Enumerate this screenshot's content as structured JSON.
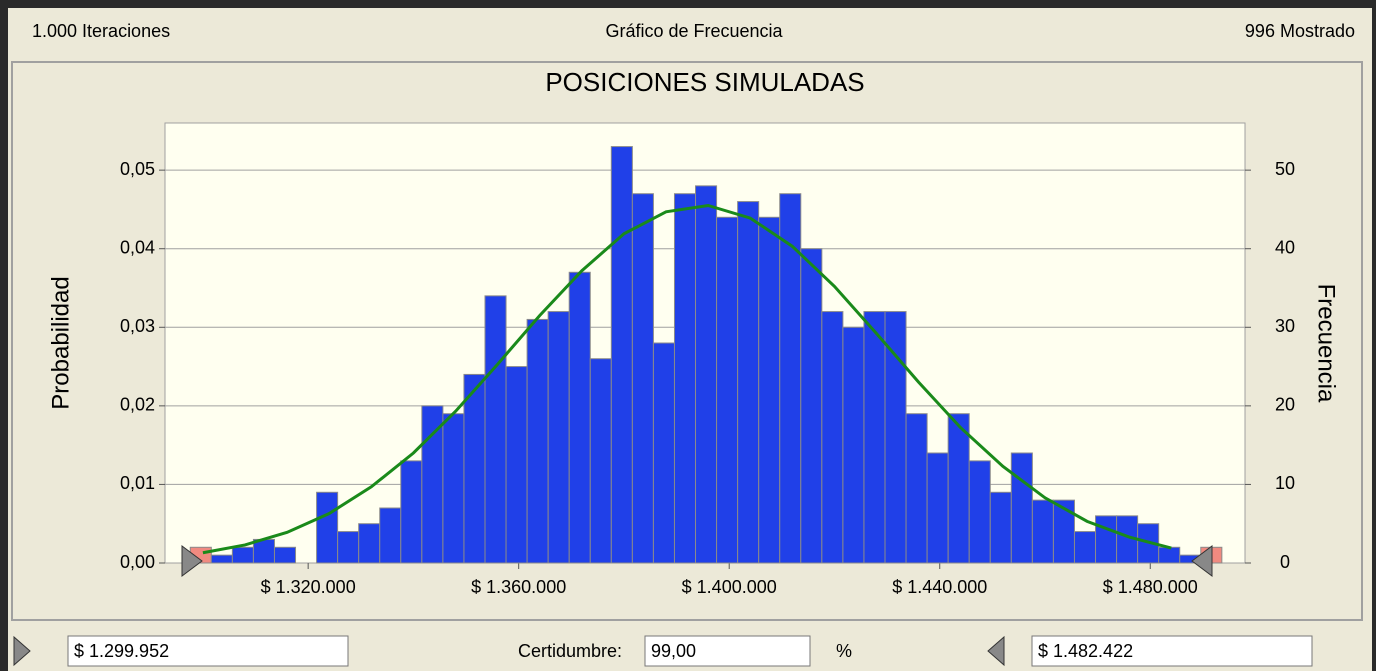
{
  "header": {
    "left": "1.000 Iteraciones",
    "center": "Gráfico de Frecuencia",
    "right": "996 Mostrado"
  },
  "chart_data": {
    "type": "histogram",
    "title": "POSICIONES SIMULADAS",
    "y_label": "Probabilidad",
    "y2_label": "Frecuencia",
    "bins": [
      1297600,
      1301600,
      1305600,
      1309600,
      1313600,
      1317600,
      1321600,
      1325600,
      1329600,
      1333600,
      1337600,
      1341600,
      1345600,
      1349600,
      1353600,
      1357600,
      1361600,
      1365600,
      1369600,
      1373600,
      1377600,
      1381600,
      1385600,
      1389600,
      1393600,
      1397600,
      1401600,
      1405600,
      1409600,
      1413600,
      1417600,
      1421600,
      1425600,
      1429600,
      1433600,
      1437600,
      1441600,
      1445600,
      1449600,
      1453600,
      1457600,
      1461600,
      1465600,
      1469600,
      1473600,
      1477600,
      1481600,
      1485600,
      1489600,
      1493600
    ],
    "values": [
      2,
      1,
      2,
      3,
      2,
      0,
      9,
      4,
      5,
      7,
      13,
      20,
      19,
      24,
      34,
      25,
      31,
      32,
      37,
      26,
      53,
      47,
      28,
      47,
      48,
      44,
      46,
      44,
      47,
      40,
      32,
      30,
      32,
      32,
      19,
      14,
      19,
      13,
      9,
      14,
      8,
      8,
      4,
      6,
      6,
      5,
      2,
      1,
      2
    ],
    "axis": "y2",
    "colors": [
      "#f08a80",
      "#2040e8",
      "#2040e8",
      "#2040e8",
      "#2040e8",
      "#2040e8",
      "#2040e8",
      "#2040e8",
      "#2040e8",
      "#2040e8",
      "#2040e8",
      "#2040e8",
      "#2040e8",
      "#2040e8",
      "#2040e8",
      "#2040e8",
      "#2040e8",
      "#2040e8",
      "#2040e8",
      "#2040e8",
      "#2040e8",
      "#2040e8",
      "#2040e8",
      "#2040e8",
      "#2040e8",
      "#2040e8",
      "#2040e8",
      "#2040e8",
      "#2040e8",
      "#2040e8",
      "#2040e8",
      "#2040e8",
      "#2040e8",
      "#2040e8",
      "#2040e8",
      "#2040e8",
      "#2040e8",
      "#2040e8",
      "#2040e8",
      "#2040e8",
      "#2040e8",
      "#2040e8",
      "#2040e8",
      "#2040e8",
      "#2040e8",
      "#2040e8",
      "#2040e8",
      "#2040e8",
      "#f08a80"
    ],
    "curve": {
      "color": "#1a8a1a",
      "x": [
        1300000,
        1308000,
        1316000,
        1324000,
        1332000,
        1340000,
        1348000,
        1356000,
        1364000,
        1372000,
        1380000,
        1388000,
        1396000,
        1404000,
        1412000,
        1420000,
        1428000,
        1436000,
        1444000,
        1452000,
        1460000,
        1468000,
        1476000,
        1484000
      ],
      "values": [
        1.3,
        2.3,
        3.9,
        6.3,
        9.7,
        14.0,
        19.3,
        25.3,
        31.5,
        37.2,
        41.9,
        44.7,
        45.5,
        43.9,
        40.3,
        35.2,
        29.2,
        23.0,
        17.2,
        12.3,
        8.3,
        5.3,
        3.3,
        1.9
      ]
    },
    "xlim": [
      1292800,
      1498000
    ],
    "xticks": [
      {
        "value": 1320000,
        "label": "$ 1.320.000"
      },
      {
        "value": 1360000,
        "label": "$ 1.360.000"
      },
      {
        "value": 1400000,
        "label": "$ 1.400.000"
      },
      {
        "value": 1440000,
        "label": "$ 1.440.000"
      },
      {
        "value": 1480000,
        "label": "$ 1.480.000"
      }
    ],
    "ylim": [
      0,
      0.056
    ],
    "yticks": [
      {
        "value": 0,
        "label": "0,00"
      },
      {
        "value": 0.01,
        "label": "0,01"
      },
      {
        "value": 0.02,
        "label": "0,02"
      },
      {
        "value": 0.03,
        "label": "0,03"
      },
      {
        "value": 0.04,
        "label": "0,04"
      },
      {
        "value": 0.05,
        "label": "0,05"
      }
    ],
    "y2lim": [
      0,
      56
    ],
    "y2ticks": [
      0,
      10,
      20,
      30,
      40,
      50
    ],
    "grid": true
  },
  "footer": {
    "left_value": "$ 1.299.952",
    "certainty_label": "Certidumbre:",
    "certainty_value": "99,00",
    "percent": "%",
    "right_value": "$ 1.482.422"
  }
}
